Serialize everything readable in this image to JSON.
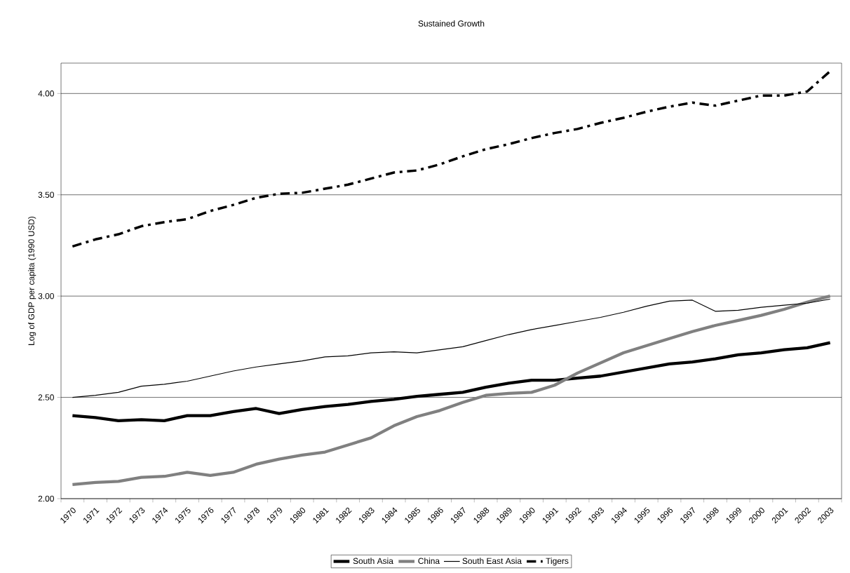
{
  "chart_data": {
    "type": "line",
    "title": "Sustained Growth",
    "ylabel": "Log of GDP per capita (1990 USD)",
    "categories": [
      "1970",
      "1971",
      "1972",
      "1973",
      "1974",
      "1975",
      "1976",
      "1977",
      "1978",
      "1979",
      "1980",
      "1981",
      "1982",
      "1983",
      "1984",
      "1985",
      "1986",
      "1987",
      "1988",
      "1989",
      "1990",
      "1991",
      "1992",
      "1993",
      "1994",
      "1995",
      "1996",
      "1997",
      "1998",
      "1999",
      "2000",
      "2001",
      "2002",
      "2003"
    ],
    "series": [
      {
        "name": "South Asia",
        "color": "#000000",
        "line_style": "solid",
        "values": [
          2.41,
          2.4,
          2.385,
          2.39,
          2.385,
          2.41,
          2.41,
          2.43,
          2.445,
          2.42,
          2.44,
          2.455,
          2.465,
          2.48,
          2.49,
          2.505,
          2.515,
          2.525,
          2.55,
          2.57,
          2.585,
          2.585,
          2.595,
          2.605,
          2.625,
          2.645,
          2.665,
          2.675,
          2.69,
          2.71,
          2.72,
          2.735,
          2.745,
          2.77
        ]
      },
      {
        "name": "China",
        "color": "#808080",
        "line_style": "solid",
        "values": [
          2.07,
          2.08,
          2.085,
          2.105,
          2.11,
          2.13,
          2.115,
          2.13,
          2.17,
          2.195,
          2.215,
          2.23,
          2.265,
          2.3,
          2.36,
          2.405,
          2.435,
          2.475,
          2.51,
          2.52,
          2.525,
          2.56,
          2.62,
          2.67,
          2.72,
          2.755,
          2.79,
          2.825,
          2.855,
          2.88,
          2.905,
          2.935,
          2.97,
          3.0
        ]
      },
      {
        "name": "South East Asia",
        "color": "#000000",
        "line_style": "solid",
        "values": [
          2.5,
          2.51,
          2.525,
          2.555,
          2.565,
          2.58,
          2.605,
          2.63,
          2.65,
          2.665,
          2.68,
          2.7,
          2.705,
          2.72,
          2.725,
          2.72,
          2.735,
          2.75,
          2.78,
          2.81,
          2.835,
          2.855,
          2.875,
          2.895,
          2.92,
          2.95,
          2.975,
          2.98,
          2.925,
          2.93,
          2.945,
          2.955,
          2.965,
          2.985
        ]
      },
      {
        "name": "Tigers",
        "color": "#000000",
        "line_style": "dashed",
        "values": [
          3.245,
          3.28,
          3.305,
          3.345,
          3.365,
          3.38,
          3.42,
          3.45,
          3.485,
          3.505,
          3.51,
          3.53,
          3.55,
          3.58,
          3.61,
          3.62,
          3.65,
          3.69,
          3.725,
          3.75,
          3.78,
          3.805,
          3.825,
          3.855,
          3.88,
          3.91,
          3.935,
          3.955,
          3.94,
          3.965,
          3.99,
          3.99,
          4.01,
          4.11
        ]
      }
    ],
    "ylim": [
      2,
      4.15
    ],
    "yticks": [
      {
        "value": 2,
        "label": "2.00"
      },
      {
        "value": 2.5,
        "label": "2.50"
      },
      {
        "value": 3,
        "label": "3.00"
      },
      {
        "value": 3.5,
        "label": "3.50"
      },
      {
        "value": 4,
        "label": "4.00"
      }
    ],
    "grid": "y",
    "legend": "bottom",
    "marker": "none"
  }
}
